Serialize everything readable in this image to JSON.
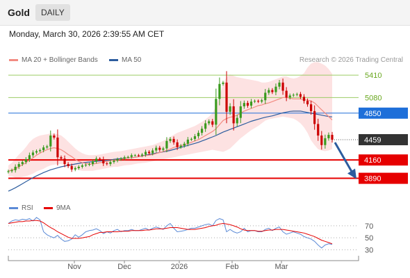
{
  "header": {
    "asset": "Gold",
    "period": "DAILY"
  },
  "datetime": "Monday, March 30, 2026 2:39:55 AM CET",
  "legend": {
    "ma20": "MA 20 + Bollinger Bands",
    "ma50": "MA 50",
    "copyright": "Research © 2026 Trading Central",
    "rsi": "RSI",
    "rsi_ma": "9MA"
  },
  "colors": {
    "ma20": "#f28b82",
    "ma50": "#2c5c9e",
    "bollinger_fill": "#fde2e2",
    "candle_up": "#3a9a1e",
    "candle_down": "#cc0000",
    "resistance": "#9ccc65",
    "pivot": "#1e6fd9",
    "support": "#e60000",
    "current": "#333333",
    "arrow": "#2c5c9e",
    "rsi": "#5b8ad6",
    "rsi_ma": "#e60000"
  },
  "chart_data": [
    {
      "type": "candlestick",
      "ylim": [
        3650,
        5800
      ],
      "x_ticks": [
        "Nov",
        "Dec",
        "2026",
        "Feb",
        "Mar"
      ],
      "levels": [
        {
          "label": "5410",
          "value": 5410,
          "kind": "resistance"
        },
        {
          "label": "5080",
          "value": 5080,
          "kind": "resistance"
        },
        {
          "label": "4850",
          "value": 4850,
          "kind": "pivot"
        },
        {
          "label": "4459",
          "value": 4459,
          "kind": "current"
        },
        {
          "label": "4160",
          "value": 4160,
          "kind": "support"
        },
        {
          "label": "3890",
          "value": 3890,
          "kind": "support"
        }
      ],
      "forecast_arrow": {
        "from": 4459,
        "to": 3890
      },
      "price_series": [
        3995,
        4010,
        4060,
        4100,
        4130,
        4170,
        4230,
        4270,
        4290,
        4305,
        4345,
        4360,
        4520,
        4490,
        4200,
        4180,
        4100,
        4070,
        4020,
        4040,
        4060,
        4080,
        4090,
        4100,
        4140,
        4180,
        4170,
        4110,
        4100,
        4130,
        4150,
        4170,
        4180,
        4200,
        4205,
        4230,
        4230,
        4225,
        4240,
        4280,
        4260,
        4300,
        4340,
        4310,
        4330,
        4440,
        4470,
        4420,
        4350,
        4370,
        4400,
        4460,
        4470,
        4510,
        4560,
        4620,
        4700,
        4730,
        4680,
        5060,
        5280,
        5300,
        4870,
        4950,
        4700,
        4780,
        4950,
        5000,
        4960,
        5020,
        5030,
        5020,
        5040,
        5150,
        5190,
        5160,
        5240,
        5300,
        5180,
        5080,
        5110,
        5120,
        5130,
        5090,
        5030,
        4980,
        4880,
        4690,
        4520,
        4380,
        4480,
        4530,
        4459
      ],
      "ma20_series": [
        4000,
        4010,
        4030,
        4060,
        4090,
        4120,
        4160,
        4190,
        4230,
        4260,
        4290,
        4310,
        4330,
        4340,
        4330,
        4310,
        4280,
        4240,
        4210,
        4170,
        4140,
        4120,
        4110,
        4100,
        4100,
        4110,
        4120,
        4130,
        4140,
        4150,
        4160,
        4160,
        4170,
        4180,
        4190,
        4195,
        4200,
        4210,
        4215,
        4225,
        4230,
        4240,
        4255,
        4270,
        4285,
        4300,
        4320,
        4345,
        4360,
        4370,
        4385,
        4400,
        4420,
        4440,
        4460,
        4490,
        4520,
        4550,
        4580,
        4620,
        4680,
        4740,
        4770,
        4790,
        4800,
        4820,
        4850,
        4880,
        4900,
        4920,
        4940,
        4960,
        4970,
        4990,
        5000,
        5020,
        5040,
        5060,
        5080,
        5080,
        5070,
        5060,
        5060,
        5060,
        5050,
        5040,
        5030,
        5000,
        4950,
        4900,
        4850,
        4800,
        4750
      ],
      "ma50_series": [
        3700,
        3725,
        3750,
        3780,
        3810,
        3840,
        3870,
        3900,
        3925,
        3950,
        3975,
        3995,
        4015,
        4030,
        4045,
        4060,
        4070,
        4080,
        4090,
        4100,
        4110,
        4120,
        4125,
        4130,
        4135,
        4140,
        4145,
        4150,
        4155,
        4160,
        4170,
        4175,
        4180,
        4185,
        4190,
        4195,
        4200,
        4210,
        4220,
        4230,
        4240,
        4250,
        4260,
        4270,
        4280,
        4290,
        4300,
        4315,
        4330,
        4345,
        4360,
        4375,
        4390,
        4405,
        4420,
        4440,
        4460,
        4480,
        4500,
        4520,
        4545,
        4570,
        4590,
        4610,
        4630,
        4650,
        4670,
        4690,
        4710,
        4730,
        4745,
        4760,
        4775,
        4790,
        4800,
        4810,
        4825,
        4840,
        4855,
        4865,
        4875,
        4880,
        4880,
        4880,
        4870,
        4860,
        4850,
        4840,
        4830,
        4820,
        4810,
        4800,
        4795
      ],
      "bb_upper": [
        4080,
        4120,
        4180,
        4240,
        4290,
        4350,
        4420,
        4470,
        4500,
        4520,
        4530,
        4540,
        4550,
        4550,
        4540,
        4520,
        4480,
        4430,
        4380,
        4330,
        4290,
        4260,
        4240,
        4230,
        4230,
        4235,
        4240,
        4250,
        4260,
        4270,
        4280,
        4285,
        4290,
        4300,
        4310,
        4320,
        4330,
        4340,
        4350,
        4360,
        4370,
        4380,
        4400,
        4420,
        4440,
        4470,
        4500,
        4530,
        4560,
        4580,
        4600,
        4620,
        4640,
        4660,
        4690,
        4720,
        4760,
        4800,
        4850,
        4950,
        5100,
        5280,
        5380,
        5420,
        5400,
        5380,
        5370,
        5360,
        5350,
        5340,
        5330,
        5320,
        5300,
        5300,
        5310,
        5330,
        5350,
        5370,
        5390,
        5390,
        5370,
        5360,
        5370,
        5400,
        5440,
        5520,
        5580,
        5600,
        5600,
        5580,
        5550,
        5500,
        5430
      ],
      "bb_lower": [
        3920,
        3920,
        3900,
        3900,
        3910,
        3920,
        3940,
        3960,
        3990,
        4010,
        4030,
        4060,
        4080,
        4090,
        4100,
        4100,
        4090,
        4070,
        4050,
        4030,
        4010,
        4000,
        4000,
        4000,
        4000,
        4010,
        4020,
        4030,
        4040,
        4050,
        4060,
        4060,
        4070,
        4080,
        4085,
        4090,
        4100,
        4110,
        4115,
        4120,
        4130,
        4140,
        4150,
        4160,
        4170,
        4180,
        4190,
        4200,
        4210,
        4220,
        4230,
        4240,
        4250,
        4260,
        4270,
        4280,
        4290,
        4300,
        4310,
        4300,
        4290,
        4280,
        4300,
        4330,
        4380,
        4430,
        4480,
        4520,
        4560,
        4600,
        4630,
        4660,
        4700,
        4740,
        4760,
        4770,
        4780,
        4790,
        4800,
        4790,
        4780,
        4770,
        4740,
        4700,
        4640,
        4560,
        4450,
        4380,
        4320,
        4300,
        4290,
        4300,
        4320
      ]
    },
    {
      "type": "line",
      "ylim": [
        20,
        85
      ],
      "y_ticks": [
        70,
        50,
        30
      ],
      "series": [
        {
          "name": "RSI",
          "values": [
            74,
            78,
            80,
            79,
            81,
            80,
            82,
            78,
            84,
            80,
            60,
            55,
            52,
            50,
            54,
            48,
            44,
            45,
            48,
            55,
            51,
            55,
            60,
            62,
            63,
            65,
            62,
            57,
            60,
            58,
            62,
            64,
            60,
            62,
            62,
            64,
            62,
            62,
            64,
            66,
            63,
            66,
            68,
            66,
            64,
            70,
            74,
            66,
            60,
            61,
            62,
            64,
            66,
            66,
            68,
            70,
            72,
            73,
            70,
            79,
            82,
            80,
            60,
            64,
            60,
            58,
            60,
            66,
            60,
            62,
            62,
            60,
            60,
            64,
            66,
            62,
            66,
            68,
            60,
            56,
            58,
            60,
            58,
            56,
            52,
            50,
            48,
            44,
            38,
            33,
            38,
            40,
            39
          ]
        },
        {
          "name": "9MA",
          "values": [
            74,
            75,
            76,
            77,
            77,
            78,
            78,
            79,
            79,
            78,
            75,
            71,
            67,
            64,
            60,
            57,
            54,
            51,
            49,
            49,
            49,
            50,
            51,
            52,
            55,
            57,
            59,
            59,
            60,
            60,
            60,
            60,
            61,
            61,
            61,
            62,
            62,
            62,
            62,
            63,
            63,
            64,
            65,
            65,
            65,
            66,
            67,
            67,
            67,
            66,
            65,
            64,
            64,
            64,
            65,
            66,
            67,
            69,
            70,
            71,
            73,
            74,
            73,
            72,
            70,
            68,
            65,
            63,
            62,
            62,
            62,
            61,
            61,
            62,
            63,
            63,
            64,
            64,
            64,
            63,
            62,
            61,
            60,
            59,
            58,
            56,
            54,
            52,
            49,
            46,
            44,
            42,
            40
          ]
        }
      ]
    }
  ]
}
